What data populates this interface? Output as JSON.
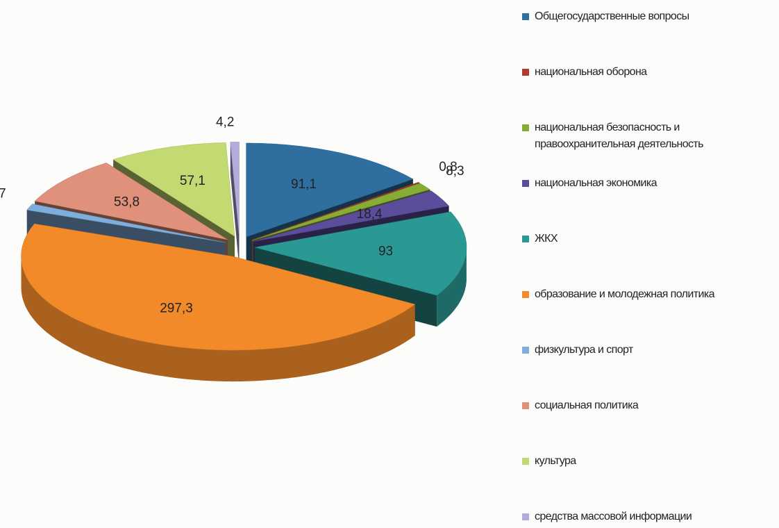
{
  "chart_data": {
    "type": "pie",
    "categories": [
      "Общегосударственные вопросы",
      "национальная оборона",
      "национальная безопасность и правоохранительная деятельность",
      "национальная экономика",
      "ЖКХ",
      "образование и молодежная политика",
      "физкультура и спорт",
      "социальная политика",
      "культура",
      "средства массовой информации"
    ],
    "values": [
      91.1,
      0.8,
      8.3,
      18.4,
      93,
      297.3,
      7,
      53.8,
      57.1,
      4.2
    ],
    "value_labels": [
      "91,1",
      "0,8",
      "8,3",
      "18,4",
      "93",
      "297,3",
      "7",
      "53,8",
      "57,1",
      "4,2"
    ],
    "colors": [
      "#2f6f9f",
      "#b23a30",
      "#86ac36",
      "#5b4c9c",
      "#2a9893",
      "#f28a2a",
      "#7eaedb",
      "#e0917b",
      "#c3da72",
      "#b3abda"
    ]
  }
}
